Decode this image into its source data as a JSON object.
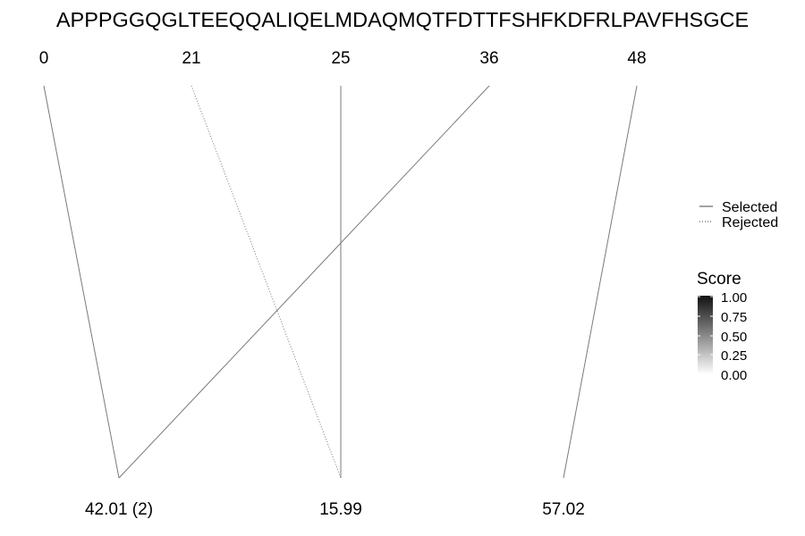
{
  "sequence": "APPPGGQGLTEEQQALIQELMDAQMQTFDTTFSHFKDFRLPAVFHSGCE",
  "top_labels": [
    "0",
    "21",
    "25",
    "36",
    "48"
  ],
  "bottom_labels": [
    "42.01 (2)",
    "15.99",
    "57.02"
  ],
  "links": [
    {
      "from": "0",
      "to": "42.01 (2)",
      "status": "Selected"
    },
    {
      "from": "21",
      "to": "15.99",
      "status": "Rejected"
    },
    {
      "from": "25",
      "to": "15.99",
      "status": "Selected"
    },
    {
      "from": "36",
      "to": "42.01 (2)",
      "status": "Selected"
    },
    {
      "from": "48",
      "to": "57.02",
      "status": "Selected"
    }
  ],
  "line_legend": {
    "items": [
      {
        "label": "Selected",
        "style": "solid"
      },
      {
        "label": "Rejected",
        "style": "dotted"
      }
    ]
  },
  "score_legend": {
    "title": "Score",
    "ticks": [
      "1.00",
      "0.75",
      "0.50",
      "0.25",
      "0.00"
    ],
    "color_high": "#111111",
    "color_low": "#ffffff"
  },
  "colors": {
    "line": "#7a7a7a",
    "text": "#000000"
  }
}
